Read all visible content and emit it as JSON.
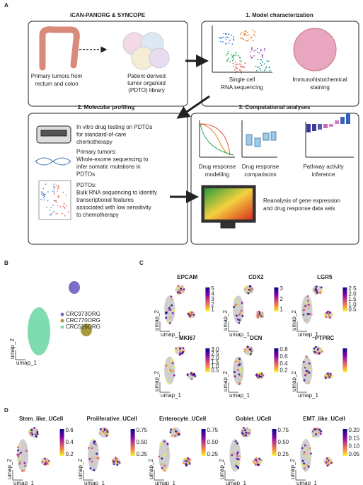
{
  "panels": {
    "a": {
      "label": "A",
      "box1": {
        "title": "iCAN-PANORG & SYNCOPE",
        "left": [
          "Primary tumors from",
          "rectum and colon"
        ],
        "right": [
          "Patient-derived",
          "tumor organoid",
          "(PDTO) library"
        ]
      },
      "box2": {
        "title": "1.  Model characterization",
        "left": [
          "Single cell",
          "RNA sequencing"
        ],
        "right": [
          "Immunohistochemical",
          "staining"
        ]
      },
      "box3": {
        "title": "2. Molecular profiling",
        "item1": [
          "In vitro drug testing on PDTOs",
          "for standard-of-care",
          "chemotherapy"
        ],
        "item2": [
          "Primary tumors:",
          "Whole-exome sequencing to",
          "infer somatic mutations in",
          "PDTOs"
        ],
        "item3": [
          "PDTOs:",
          "Bulk RNA sequencing to identify",
          "transcriptional features",
          "associated with low sensitivity",
          "to chemotherapy"
        ]
      },
      "box4": {
        "title": "3. Computational analyses",
        "c1": [
          "Drug response",
          "modelling"
        ],
        "c2": [
          "Drug response",
          "comparisons"
        ],
        "c3": [
          "Pathway activity",
          "inference"
        ],
        "c4": [
          "Reanalysis of gene expression",
          "and drug response data sets"
        ]
      }
    },
    "b": {
      "label": "B",
      "legend": [
        "CRC973ORG",
        "CRC770ORG",
        "CRC516ORG"
      ]
    },
    "c": {
      "label": "C",
      "plots": [
        {
          "title": "EPCAM",
          "ticks": [
            "5",
            "4",
            "3",
            "2",
            "1"
          ]
        },
        {
          "title": "CDX2",
          "ticks": [
            "3",
            "2",
            "1"
          ]
        },
        {
          "title": "LGR5",
          "ticks": [
            "2.5",
            "2.0",
            "1.5",
            "1.0",
            "0.5"
          ]
        },
        {
          "title": "MKI67",
          "ticks": [
            "3.0",
            "2.5",
            "2.0",
            "1.5",
            "1.0",
            "0.5"
          ]
        },
        {
          "title": "DCN",
          "ticks": [
            "0.8",
            "0.6",
            "0.4",
            "0.2"
          ]
        },
        {
          "title": "PTPRC",
          "ticks": []
        }
      ]
    },
    "d": {
      "label": "D",
      "plots": [
        {
          "title": "Stem_like_UCell",
          "ticks": [
            "0.6",
            "0.4",
            "0.2"
          ]
        },
        {
          "title": "Proliferative_UCell",
          "ticks": [
            "0.75",
            "0.50",
            "0.25"
          ]
        },
        {
          "title": "Enterocyte_UCell",
          "ticks": [
            "0.75",
            "0.50",
            "0.25"
          ]
        },
        {
          "title": "Goblet_UCell",
          "ticks": [
            "0.75",
            "0.50",
            "0.25"
          ]
        },
        {
          "title": "EMT_like_UCell",
          "ticks": [
            "0.20",
            "0.15",
            "0.10",
            "0.05"
          ]
        }
      ]
    },
    "umap_x": "umap_1",
    "umap_y": "umap_2"
  }
}
